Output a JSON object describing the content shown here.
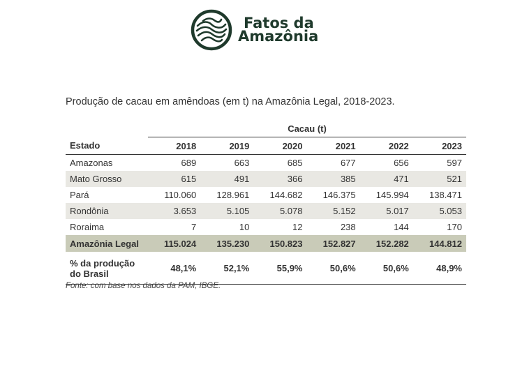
{
  "logo": {
    "line1": "Fatos da",
    "line2": "Amazônia",
    "color": "#1f3a2c"
  },
  "subtitle": "Produção de cacau em amêndoas (em t) na Amazônia Legal, 2018-2023.",
  "table": {
    "group_header": "Cacau (t)",
    "estado_header": "Estado",
    "years": [
      "2018",
      "2019",
      "2020",
      "2021",
      "2022",
      "2023"
    ],
    "rows": [
      {
        "name": "Amazonas",
        "values": [
          "689",
          "663",
          "685",
          "677",
          "656",
          "597"
        ]
      },
      {
        "name": "Mato Grosso",
        "values": [
          "615",
          "491",
          "366",
          "385",
          "471",
          "521"
        ]
      },
      {
        "name": "Pará",
        "values": [
          "110.060",
          "128.961",
          "144.682",
          "146.375",
          "145.994",
          "138.471"
        ]
      },
      {
        "name": "Rondônia",
        "values": [
          "3.653",
          "5.105",
          "5.078",
          "5.152",
          "5.017",
          "5.053"
        ]
      },
      {
        "name": "Roraima",
        "values": [
          "7",
          "10",
          "12",
          "238",
          "144",
          "170"
        ]
      }
    ],
    "total": {
      "name": "Amazônia Legal",
      "values": [
        "115.024",
        "135.230",
        "150.823",
        "152.827",
        "152.282",
        "144.812"
      ]
    },
    "pct": {
      "name_line1": "% da produção",
      "name_line2": "do Brasil",
      "values": [
        "48,1%",
        "52,1%",
        "55,9%",
        "50,6%",
        "50,6%",
        "48,9%"
      ]
    },
    "shade_color": "#e9e8e3",
    "total_color": "#c9cbb8"
  },
  "source": "Fonte: com base nos dados da PAM, IBGE."
}
